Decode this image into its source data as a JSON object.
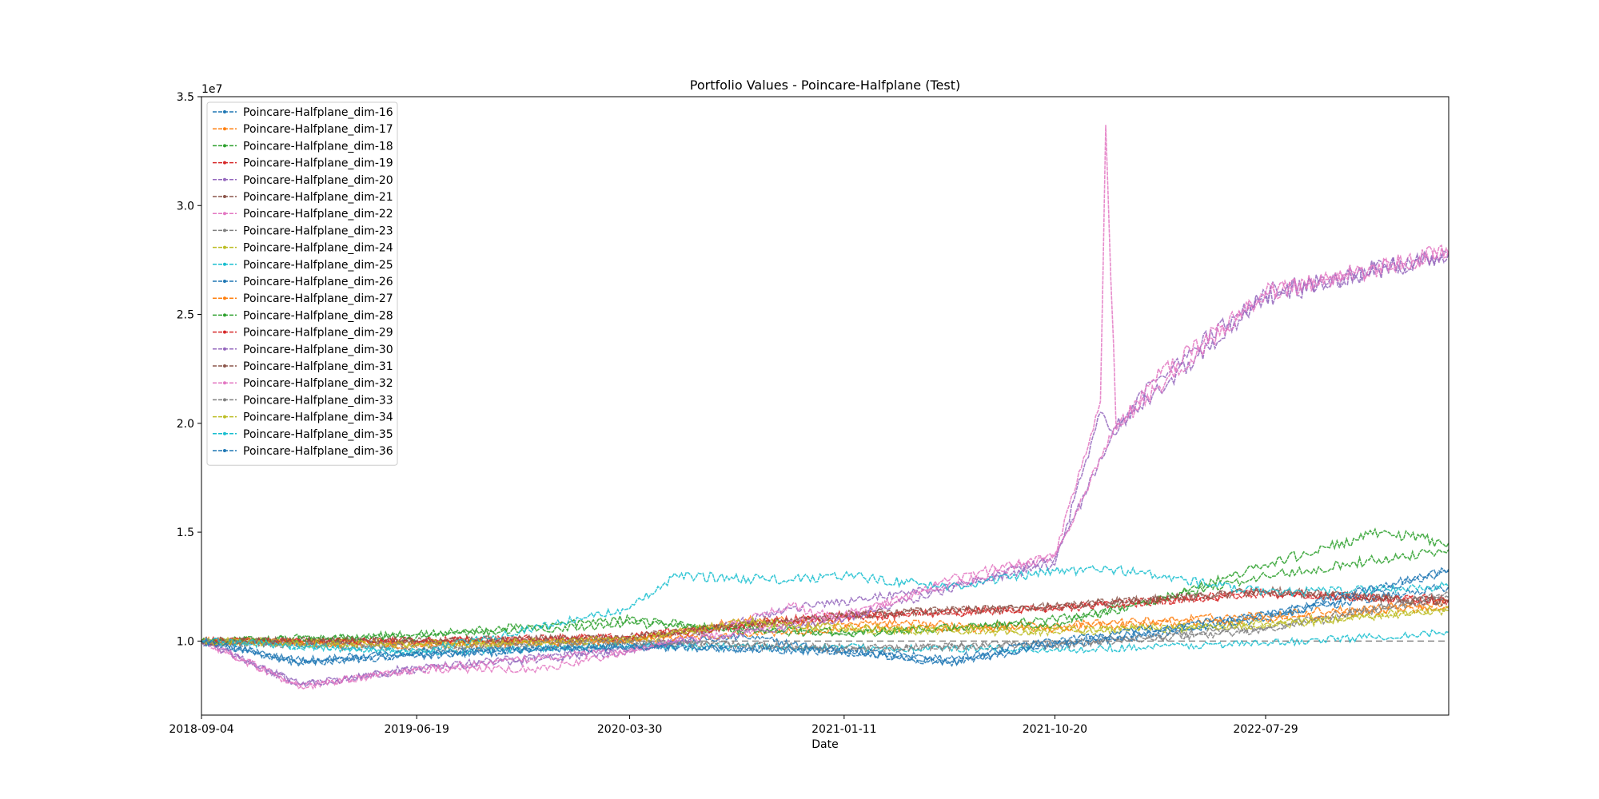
{
  "chart_data": {
    "type": "line",
    "title": "Portfolio Values - Poincare-Halfplane (Test)",
    "xlabel": "Date",
    "ylabel": "",
    "y_scale_label": "1e7",
    "x_ticks": [
      "2018-09-04",
      "2019-06-19",
      "2020-03-30",
      "2021-01-11",
      "2021-10-20",
      "2022-07-29"
    ],
    "x_range": [
      "2018-09-04",
      "2023-03-31"
    ],
    "y_ticks": [
      1.0,
      1.5,
      2.0,
      2.5,
      3.0,
      3.5
    ],
    "ylim": [
      0.66,
      3.5
    ],
    "y_unit_multiplier": 10000000,
    "reference_line": 1.0,
    "legend_position": "upper-left",
    "grid": false,
    "series": [
      {
        "name": "Poincare-Halfplane_dim-16",
        "color": "#1f77b4",
        "dates": [
          "2018-09-04",
          "2019-01-15",
          "2019-06-19",
          "2019-12-01",
          "2020-03-30",
          "2020-09-01",
          "2021-01-11",
          "2021-06-01",
          "2021-10-20",
          "2022-03-01",
          "2022-07-29",
          "2023-03-31"
        ],
        "values": [
          1.0,
          0.9,
          0.93,
          0.96,
          0.98,
          1.02,
          0.95,
          0.9,
          0.98,
          1.03,
          1.12,
          1.25
        ]
      },
      {
        "name": "Poincare-Halfplane_dim-17",
        "color": "#ff7f0e",
        "dates": [
          "2018-09-04",
          "2019-06-19",
          "2020-03-30",
          "2020-09-01",
          "2021-01-11",
          "2021-10-20",
          "2022-07-29",
          "2023-03-31"
        ],
        "values": [
          1.0,
          0.99,
          1.0,
          1.1,
          1.08,
          1.07,
          1.12,
          1.18
        ]
      },
      {
        "name": "Poincare-Halfplane_dim-18",
        "color": "#2ca02c",
        "dates": [
          "2018-09-04",
          "2019-06-19",
          "2019-12-01",
          "2020-03-30",
          "2020-09-01",
          "2021-01-11",
          "2021-06-01",
          "2021-10-20",
          "2022-03-01",
          "2022-07-29",
          "2023-01-01",
          "2023-03-31"
        ],
        "values": [
          1.0,
          1.03,
          1.07,
          1.1,
          1.05,
          1.03,
          1.06,
          1.1,
          1.18,
          1.35,
          1.5,
          1.45
        ]
      },
      {
        "name": "Poincare-Halfplane_dim-19",
        "color": "#d62728",
        "dates": [
          "2018-09-04",
          "2019-06-19",
          "2020-03-30",
          "2020-09-01",
          "2021-01-11",
          "2021-10-20",
          "2022-07-29",
          "2023-03-31"
        ],
        "values": [
          1.0,
          1.0,
          1.02,
          1.08,
          1.12,
          1.15,
          1.22,
          1.18
        ]
      },
      {
        "name": "Poincare-Halfplane_dim-20",
        "color": "#9467bd",
        "dates": [
          "2018-09-04",
          "2019-01-15",
          "2019-06-19",
          "2020-03-30",
          "2020-11-01",
          "2021-06-01",
          "2021-10-20",
          "2021-12-20",
          "2022-01-10",
          "2022-03-01",
          "2022-07-29",
          "2023-03-31"
        ],
        "values": [
          1.0,
          0.8,
          0.87,
          0.95,
          1.15,
          1.25,
          1.35,
          2.05,
          1.95,
          2.2,
          2.6,
          2.78
        ]
      },
      {
        "name": "Poincare-Halfplane_dim-21",
        "color": "#8c564b",
        "dates": [
          "2018-09-04",
          "2019-06-19",
          "2020-03-30",
          "2020-09-01",
          "2021-01-11",
          "2021-10-20",
          "2022-07-29",
          "2023-03-31"
        ],
        "values": [
          1.0,
          1.0,
          1.01,
          1.07,
          1.12,
          1.16,
          1.23,
          1.18
        ]
      },
      {
        "name": "Poincare-Halfplane_dim-22",
        "color": "#e377c2",
        "dates": [
          "2018-09-04",
          "2019-01-15",
          "2019-06-19",
          "2019-12-01",
          "2020-03-30",
          "2020-11-01",
          "2021-01-11",
          "2021-06-01",
          "2021-10-20",
          "2021-12-20",
          "2021-12-27",
          "2022-01-10",
          "2022-03-01",
          "2022-07-29",
          "2023-03-31"
        ],
        "values": [
          1.0,
          0.79,
          0.87,
          0.87,
          0.95,
          1.16,
          1.1,
          1.28,
          1.4,
          2.1,
          3.37,
          1.97,
          2.2,
          2.6,
          2.78
        ]
      },
      {
        "name": "Poincare-Halfplane_dim-23",
        "color": "#7f7f7f",
        "dates": [
          "2018-09-04",
          "2019-06-19",
          "2020-03-30",
          "2021-01-11",
          "2021-10-20",
          "2022-07-29",
          "2023-03-31"
        ],
        "values": [
          1.0,
          0.96,
          0.99,
          0.97,
          0.98,
          1.05,
          1.2
        ]
      },
      {
        "name": "Poincare-Halfplane_dim-24",
        "color": "#bcbd22",
        "dates": [
          "2018-09-04",
          "2019-06-19",
          "2020-03-30",
          "2020-09-01",
          "2021-01-11",
          "2021-10-20",
          "2022-07-29",
          "2023-03-31"
        ],
        "values": [
          1.0,
          0.99,
          1.0,
          1.08,
          1.05,
          1.04,
          1.07,
          1.14
        ]
      },
      {
        "name": "Poincare-Halfplane_dim-25",
        "color": "#17becf",
        "dates": [
          "2018-09-04",
          "2019-06-19",
          "2020-03-30",
          "2021-01-11",
          "2021-10-20",
          "2022-07-29",
          "2023-03-31"
        ],
        "values": [
          1.0,
          0.95,
          0.98,
          0.97,
          0.96,
          0.99,
          1.04
        ]
      },
      {
        "name": "Poincare-Halfplane_dim-26",
        "color": "#1f77b4",
        "dates": [
          "2018-09-04",
          "2019-01-15",
          "2019-06-19",
          "2020-03-30",
          "2021-01-11",
          "2021-06-01",
          "2021-10-20",
          "2022-07-29",
          "2023-03-31"
        ],
        "values": [
          1.0,
          0.9,
          0.94,
          0.98,
          0.95,
          0.9,
          0.99,
          1.1,
          1.32
        ]
      },
      {
        "name": "Poincare-Halfplane_dim-27",
        "color": "#ff7f0e",
        "dates": [
          "2018-09-04",
          "2019-06-19",
          "2020-03-30",
          "2021-01-11",
          "2021-10-20",
          "2022-07-29",
          "2023-03-31"
        ],
        "values": [
          1.0,
          0.98,
          1.0,
          1.06,
          1.06,
          1.1,
          1.16
        ]
      },
      {
        "name": "Poincare-Halfplane_dim-28",
        "color": "#2ca02c",
        "dates": [
          "2018-09-04",
          "2019-06-19",
          "2020-03-30",
          "2021-01-11",
          "2021-10-20",
          "2022-07-29",
          "2023-03-31"
        ],
        "values": [
          1.0,
          1.02,
          1.08,
          1.04,
          1.08,
          1.3,
          1.42
        ]
      },
      {
        "name": "Poincare-Halfplane_dim-29",
        "color": "#d62728",
        "dates": [
          "2018-09-04",
          "2019-06-19",
          "2020-03-30",
          "2021-01-11",
          "2021-10-20",
          "2022-07-29",
          "2023-03-31"
        ],
        "values": [
          1.0,
          1.0,
          1.02,
          1.11,
          1.15,
          1.22,
          1.19
        ]
      },
      {
        "name": "Poincare-Halfplane_dim-30",
        "color": "#9467bd",
        "dates": [
          "2018-09-04",
          "2019-01-15",
          "2019-06-19",
          "2020-03-30",
          "2021-01-11",
          "2021-10-20",
          "2022-01-10",
          "2022-07-29",
          "2023-03-31"
        ],
        "values": [
          1.0,
          0.8,
          0.88,
          0.96,
          1.1,
          1.38,
          1.98,
          2.58,
          2.78
        ]
      },
      {
        "name": "Poincare-Halfplane_dim-31",
        "color": "#8c564b",
        "dates": [
          "2018-09-04",
          "2019-06-19",
          "2020-03-30",
          "2021-01-11",
          "2021-10-20",
          "2022-07-29",
          "2023-03-31"
        ],
        "values": [
          1.0,
          1.0,
          1.02,
          1.12,
          1.16,
          1.23,
          1.18
        ]
      },
      {
        "name": "Poincare-Halfplane_dim-32",
        "color": "#e377c2",
        "dates": [
          "2018-09-04",
          "2019-01-15",
          "2019-06-19",
          "2020-03-30",
          "2021-01-11",
          "2021-10-20",
          "2022-01-10",
          "2022-07-29",
          "2023-03-31"
        ],
        "values": [
          1.0,
          0.79,
          0.87,
          0.96,
          1.12,
          1.39,
          1.99,
          2.6,
          2.79
        ]
      },
      {
        "name": "Poincare-Halfplane_dim-33",
        "color": "#7f7f7f",
        "dates": [
          "2018-09-04",
          "2019-06-19",
          "2020-03-30",
          "2021-01-11",
          "2021-10-20",
          "2022-07-29",
          "2023-03-31"
        ],
        "values": [
          1.0,
          0.97,
          1.0,
          0.96,
          0.99,
          1.06,
          1.22
        ]
      },
      {
        "name": "Poincare-Halfplane_dim-34",
        "color": "#bcbd22",
        "dates": [
          "2018-09-04",
          "2019-06-19",
          "2020-03-30",
          "2020-09-01",
          "2021-01-11",
          "2021-10-20",
          "2022-07-29",
          "2023-03-31"
        ],
        "values": [
          1.0,
          0.98,
          1.01,
          1.09,
          1.06,
          1.05,
          1.08,
          1.15
        ]
      },
      {
        "name": "Poincare-Halfplane_dim-35",
        "color": "#17becf",
        "dates": [
          "2018-09-04",
          "2019-06-19",
          "2020-03-30",
          "2020-06-01",
          "2020-11-01",
          "2021-01-11",
          "2021-06-01",
          "2021-10-20",
          "2022-01-10",
          "2022-07-29",
          "2023-03-31"
        ],
        "values": [
          1.0,
          0.95,
          1.15,
          1.3,
          1.28,
          1.3,
          1.25,
          1.32,
          1.33,
          1.22,
          1.25
        ]
      },
      {
        "name": "Poincare-Halfplane_dim-36",
        "color": "#1f77b4",
        "dates": [
          "2018-09-04",
          "2019-01-15",
          "2019-06-19",
          "2020-03-30",
          "2021-01-11",
          "2021-06-01",
          "2021-10-20",
          "2022-07-29",
          "2023-03-31"
        ],
        "values": [
          1.0,
          0.91,
          0.95,
          0.97,
          0.96,
          0.92,
          1.0,
          1.12,
          1.33
        ]
      }
    ]
  }
}
